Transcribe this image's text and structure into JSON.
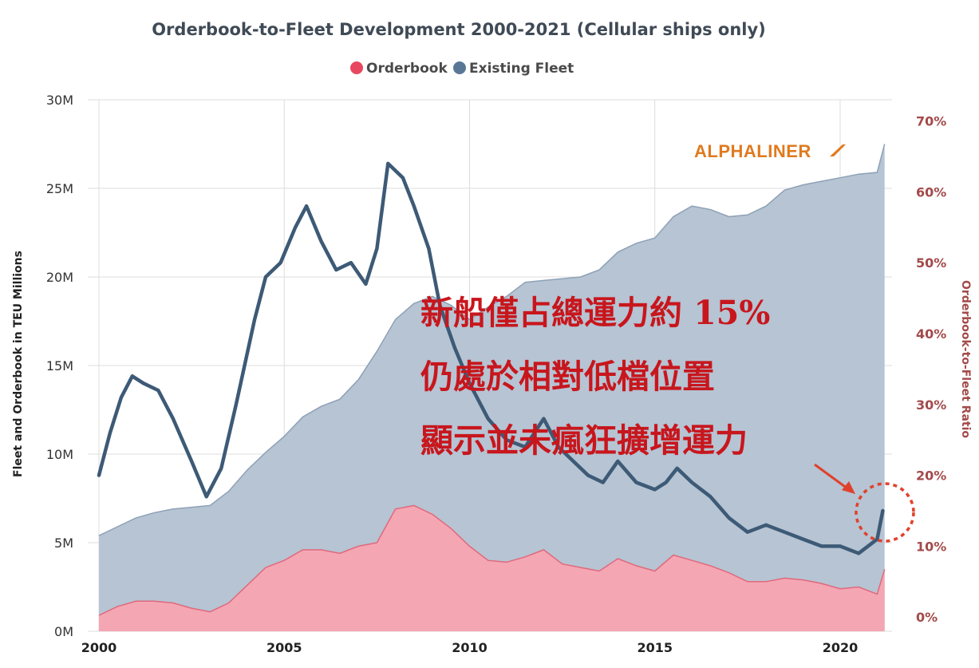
{
  "chart_data": {
    "type": "area",
    "title": "Orderbook-to-Fleet Development 2000-2021 (Cellular ships only)",
    "ylabel": "Fleet and Orderbook in TEU Millions",
    "y2label": "Orderbook-to-Fleet Ratio",
    "ylim": [
      0,
      30
    ],
    "y2lim": [
      -2,
      73
    ],
    "xlim": [
      2000,
      2021.4
    ],
    "x_ticks": [
      "2000",
      "2005",
      "2010",
      "2015",
      "2020"
    ],
    "y_ticks": [
      "0M",
      "5M",
      "10M",
      "15M",
      "20M",
      "25M",
      "30M"
    ],
    "y2_ticks": [
      "0%",
      "10%",
      "20%",
      "30%",
      "40%",
      "50%",
      "60%",
      "70%"
    ],
    "legend": [
      {
        "label": "Orderbook",
        "color": "#e8485f"
      },
      {
        "label": "Existing Fleet",
        "color": "#5b7796"
      }
    ],
    "legend_position": "top-center",
    "grid": true,
    "series": [
      {
        "name": "Existing Fleet",
        "unit": "TEU millions",
        "color": "#b6c4d3",
        "x": [
          2000,
          2000.5,
          2001,
          2001.5,
          2002,
          2002.5,
          2003,
          2003.5,
          2004,
          2004.5,
          2005,
          2005.5,
          2006,
          2006.5,
          2007,
          2007.5,
          2008,
          2008.5,
          2009,
          2009.5,
          2010,
          2010.5,
          2011,
          2011.5,
          2012,
          2012.5,
          2013,
          2013.5,
          2014,
          2014.5,
          2015,
          2015.5,
          2016,
          2016.5,
          2017,
          2017.5,
          2018,
          2018.5,
          2019,
          2019.5,
          2020,
          2020.5,
          2021,
          2021.2
        ],
        "values": [
          5.4,
          5.9,
          6.4,
          6.7,
          6.9,
          7.0,
          7.1,
          7.9,
          9.1,
          10.1,
          11.0,
          12.1,
          12.7,
          13.1,
          14.2,
          15.8,
          17.6,
          18.5,
          18.9,
          18.4,
          17.6,
          18.3,
          18.9,
          19.7,
          19.8,
          19.9,
          20.0,
          20.4,
          21.4,
          21.9,
          22.2,
          23.4,
          24.0,
          23.8,
          23.4,
          23.5,
          24.0,
          24.9,
          25.2,
          25.4,
          25.6,
          25.8,
          25.9,
          27.5
        ]
      },
      {
        "name": "Orderbook",
        "unit": "TEU millions",
        "color": "#f4a6b3",
        "x": [
          2000,
          2000.5,
          2001,
          2001.5,
          2002,
          2002.5,
          2003,
          2003.5,
          2004,
          2004.5,
          2005,
          2005.5,
          2006,
          2006.5,
          2007,
          2007.5,
          2008,
          2008.5,
          2009,
          2009.5,
          2010,
          2010.5,
          2011,
          2011.5,
          2012,
          2012.5,
          2013,
          2013.5,
          2014,
          2014.5,
          2015,
          2015.5,
          2016,
          2016.5,
          2017,
          2017.5,
          2018,
          2018.5,
          2019,
          2019.5,
          2020,
          2020.5,
          2021,
          2021.2
        ],
        "values": [
          0.9,
          1.4,
          1.7,
          1.7,
          1.6,
          1.3,
          1.1,
          1.6,
          2.6,
          3.6,
          4.0,
          4.6,
          4.6,
          4.4,
          4.8,
          5.0,
          6.9,
          7.1,
          6.6,
          5.8,
          4.8,
          4.0,
          3.9,
          4.2,
          4.6,
          3.8,
          3.6,
          3.4,
          4.1,
          3.7,
          3.4,
          4.3,
          4.0,
          3.7,
          3.3,
          2.8,
          2.8,
          3.0,
          2.9,
          2.7,
          2.4,
          2.5,
          2.1,
          3.5
        ]
      },
      {
        "name": "Orderbook-to-Fleet Ratio",
        "unit": "%",
        "axis": "right",
        "color": "#3d5a76",
        "x": [
          2000,
          2000.3,
          2000.6,
          2000.9,
          2001.2,
          2001.6,
          2002,
          2002.5,
          2002.9,
          2003.3,
          2003.7,
          2004.2,
          2004.5,
          2004.9,
          2005.3,
          2005.6,
          2006,
          2006.4,
          2006.8,
          2007.2,
          2007.5,
          2007.8,
          2008.2,
          2008.5,
          2008.9,
          2009.2,
          2009.6,
          2010,
          2010.5,
          2011,
          2011.5,
          2012,
          2012.4,
          2012.8,
          2013.2,
          2013.6,
          2014,
          2014.5,
          2015,
          2015.3,
          2015.6,
          2016,
          2016.5,
          2017,
          2017.5,
          2018,
          2018.5,
          2019,
          2019.5,
          2020,
          2020.5,
          2021,
          2021.15
        ],
        "values": [
          20,
          26,
          31,
          34,
          33,
          32,
          28,
          22,
          17,
          21,
          30,
          42,
          48,
          50,
          55,
          58,
          53,
          49,
          50,
          47,
          52,
          64,
          62,
          58,
          52,
          44,
          38,
          33,
          28,
          25,
          24,
          28,
          24,
          22,
          20,
          19,
          22,
          19,
          18,
          19,
          21,
          19,
          17,
          14,
          12,
          13,
          12,
          11,
          10,
          10,
          9,
          11,
          15
        ]
      }
    ],
    "annotations": [
      "ALPHALINER",
      "新船僅占總運力約 15%",
      "仍處於相對低檔位置",
      "顯示並未瘋狂擴增運力"
    ]
  }
}
